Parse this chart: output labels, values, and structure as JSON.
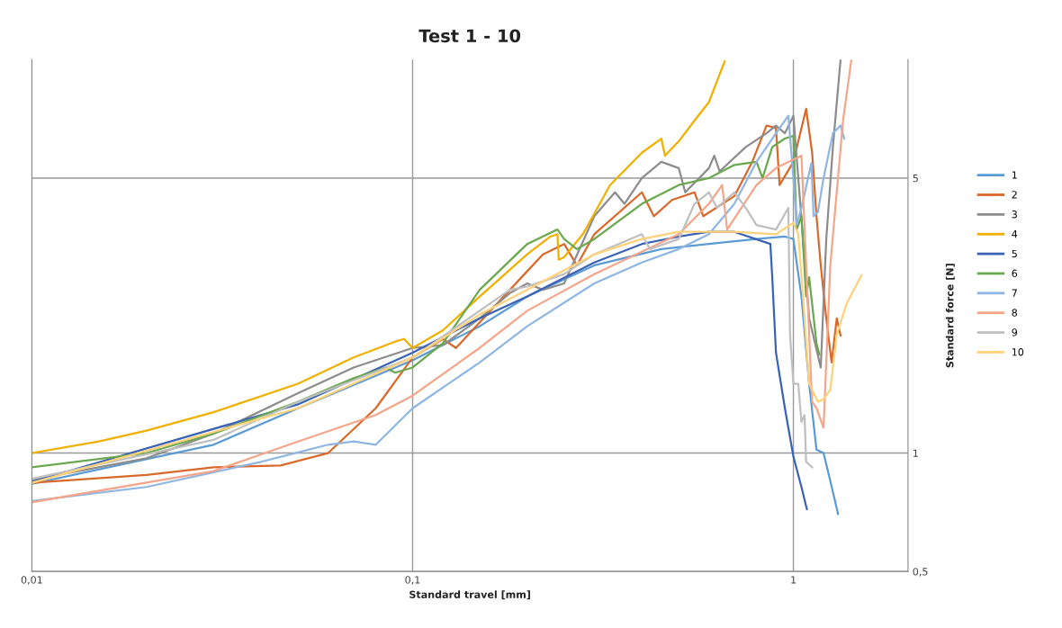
{
  "chart_data": {
    "type": "line",
    "title": "Test 1 - 10",
    "xlabel": "Standard travel [mm]",
    "ylabel": "Standard force [N]",
    "log": "xy",
    "xlim": [
      0.01,
      2
    ],
    "ylim": [
      0.5,
      10
    ],
    "xticks": [
      {
        "value": 0.01,
        "label": "0,01"
      },
      {
        "value": 0.1,
        "label": "0,1"
      },
      1
    ],
    "yticks": [
      {
        "value": 0.5,
        "label": "0,5"
      },
      1,
      5
    ],
    "grid": true,
    "legend": "right",
    "marker": "none",
    "line_style": "solid",
    "series": [
      {
        "name": "1",
        "color": "#5b9bd5",
        "x": [
          0.01,
          0.03,
          0.05,
          0.1,
          0.15,
          0.2,
          0.3,
          0.45,
          0.6,
          0.8,
          0.95,
          1.0,
          1.05,
          1.1,
          1.15,
          1.2,
          1.25,
          1.31
        ],
        "values": [
          0.835,
          1.05,
          1.3,
          1.72,
          2.1,
          2.5,
          3.0,
          3.3,
          3.4,
          3.5,
          3.55,
          3.5,
          2.5,
          1.5,
          1.02,
          1.0,
          0.85,
          0.7
        ]
      },
      {
        "name": "2",
        "color": "#d9692a",
        "x": [
          0.01,
          0.02,
          0.03,
          0.045,
          0.06,
          0.08,
          0.1,
          0.12,
          0.13,
          0.16,
          0.2,
          0.22,
          0.25,
          0.27,
          0.3,
          0.4,
          0.43,
          0.48,
          0.55,
          0.58,
          0.7,
          0.78,
          0.85,
          0.9,
          0.92,
          1.0,
          1.08,
          1.12,
          1.15,
          1.18,
          1.22,
          1.26,
          1.3,
          1.33
        ],
        "values": [
          0.84,
          0.88,
          0.92,
          0.93,
          1.0,
          1.3,
          1.75,
          1.95,
          1.85,
          2.3,
          2.9,
          3.2,
          3.4,
          3.0,
          3.6,
          4.6,
          4.0,
          4.4,
          4.6,
          4.0,
          4.5,
          5.5,
          6.8,
          6.7,
          4.8,
          5.5,
          7.5,
          5.8,
          4.0,
          3.0,
          2.2,
          1.7,
          2.2,
          1.99
        ]
      },
      {
        "name": "3",
        "color": "#8c8c8c",
        "x": [
          0.01,
          0.02,
          0.03,
          0.05,
          0.07,
          0.1,
          0.12,
          0.15,
          0.18,
          0.2,
          0.22,
          0.25,
          0.3,
          0.34,
          0.36,
          0.4,
          0.45,
          0.5,
          0.52,
          0.6,
          0.62,
          0.64,
          0.75,
          0.85,
          0.9,
          0.95,
          1.0,
          1.03,
          1.06,
          1.1,
          1.18,
          1.22,
          1.27,
          1.33
        ],
        "values": [
          0.855,
          0.97,
          1.12,
          1.42,
          1.65,
          1.85,
          1.88,
          2.2,
          2.55,
          2.7,
          2.6,
          2.7,
          4.0,
          4.6,
          4.3,
          5.0,
          5.5,
          5.3,
          4.6,
          5.3,
          5.7,
          5.2,
          6.0,
          6.5,
          6.8,
          6.5,
          7.2,
          5.0,
          3.5,
          2.2,
          1.65,
          3.5,
          6.0,
          10.0
        ]
      },
      {
        "name": "4",
        "color": "#f0b000",
        "x": [
          0.01,
          0.015,
          0.02,
          0.03,
          0.05,
          0.07,
          0.09,
          0.095,
          0.1,
          0.12,
          0.15,
          0.2,
          0.23,
          0.24,
          0.242,
          0.25,
          0.28,
          0.33,
          0.4,
          0.45,
          0.46,
          0.5,
          0.55,
          0.6,
          0.66
        ],
        "values": [
          1.0,
          1.07,
          1.14,
          1.27,
          1.5,
          1.75,
          1.92,
          1.95,
          1.85,
          2.05,
          2.5,
          3.2,
          3.55,
          3.6,
          3.1,
          3.15,
          3.6,
          4.8,
          5.8,
          6.3,
          5.7,
          6.2,
          7.0,
          7.8,
          9.9
        ]
      },
      {
        "name": "5",
        "color": "#3a62b5",
        "x": [
          0.01,
          0.05,
          0.1,
          0.15,
          0.2,
          0.3,
          0.4,
          0.5,
          0.6,
          0.7,
          0.87,
          0.88,
          0.9,
          0.95,
          1.0,
          1.05,
          1.085
        ],
        "values": [
          0.845,
          1.33,
          1.8,
          2.2,
          2.5,
          3.05,
          3.4,
          3.55,
          3.65,
          3.65,
          3.4,
          2.8,
          1.8,
          1.3,
          0.98,
          0.82,
          0.72
        ]
      },
      {
        "name": "6",
        "color": "#6aa84f",
        "x": [
          0.01,
          0.02,
          0.03,
          0.05,
          0.07,
          0.085,
          0.09,
          0.1,
          0.12,
          0.15,
          0.2,
          0.24,
          0.25,
          0.27,
          0.3,
          0.4,
          0.5,
          0.6,
          0.7,
          0.8,
          0.83,
          0.88,
          0.95,
          1.0,
          1.02,
          1.05,
          1.08,
          1.1,
          1.15,
          1.17
        ],
        "values": [
          0.92,
          1.0,
          1.12,
          1.35,
          1.55,
          1.65,
          1.6,
          1.65,
          1.9,
          2.6,
          3.4,
          3.7,
          3.5,
          3.3,
          3.5,
          4.3,
          4.8,
          5.0,
          5.4,
          5.5,
          5.0,
          6.0,
          6.3,
          6.4,
          3.7,
          4.0,
          2.5,
          2.8,
          1.9,
          1.78
        ]
      },
      {
        "name": "7",
        "color": "#8fb6e3",
        "x": [
          0.01,
          0.02,
          0.04,
          0.06,
          0.07,
          0.08,
          0.1,
          0.15,
          0.2,
          0.3,
          0.4,
          0.5,
          0.6,
          0.7,
          0.8,
          0.9,
          0.97,
          1.0,
          1.02,
          1.05,
          1.115,
          1.13,
          1.16,
          1.2,
          1.27,
          1.33,
          1.36
        ],
        "values": [
          0.755,
          0.82,
          0.95,
          1.05,
          1.07,
          1.05,
          1.3,
          1.7,
          2.1,
          2.7,
          3.05,
          3.3,
          3.6,
          4.3,
          5.5,
          6.5,
          7.2,
          5.0,
          3.8,
          4.2,
          5.46,
          4.0,
          4.1,
          5.0,
          6.5,
          6.8,
          6.3
        ]
      },
      {
        "name": "8",
        "color": "#f4a58a",
        "x": [
          0.01,
          0.03,
          0.05,
          0.08,
          0.1,
          0.15,
          0.2,
          0.3,
          0.4,
          0.5,
          0.6,
          0.65,
          0.67,
          0.8,
          0.9,
          1.05,
          1.1,
          1.12,
          1.15,
          1.2,
          1.25,
          1.35,
          1.42
        ],
        "values": [
          0.75,
          0.9,
          1.07,
          1.25,
          1.4,
          1.85,
          2.3,
          2.85,
          3.25,
          3.6,
          4.3,
          4.8,
          3.7,
          4.8,
          5.3,
          5.7,
          2.0,
          1.35,
          1.3,
          1.16,
          3.0,
          7.0,
          10.0
        ]
      },
      {
        "name": "9",
        "color": "#bfbfbf",
        "x": [
          0.01,
          0.03,
          0.05,
          0.1,
          0.15,
          0.18,
          0.2,
          0.25,
          0.3,
          0.4,
          0.42,
          0.5,
          0.55,
          0.6,
          0.63,
          0.7,
          0.75,
          0.8,
          0.9,
          0.97,
          0.98,
          1.0,
          1.03,
          1.05,
          1.07,
          1.08,
          1.12
        ],
        "values": [
          0.86,
          1.08,
          1.35,
          1.75,
          2.3,
          2.6,
          2.65,
          2.85,
          3.2,
          3.6,
          3.3,
          3.5,
          4.3,
          4.6,
          4.2,
          4.6,
          4.2,
          3.8,
          3.7,
          4.2,
          2.0,
          1.5,
          1.5,
          1.2,
          1.25,
          0.95,
          0.92
        ]
      },
      {
        "name": "10",
        "color": "#ffd27a",
        "x": [
          0.01,
          0.05,
          0.1,
          0.15,
          0.2,
          0.3,
          0.4,
          0.5,
          0.7,
          0.9,
          1.0,
          1.03,
          1.06,
          1.1,
          1.16,
          1.2,
          1.25,
          1.3,
          1.38,
          1.51
        ],
        "values": [
          0.84,
          1.3,
          1.75,
          2.25,
          2.6,
          3.2,
          3.5,
          3.65,
          3.65,
          3.6,
          3.85,
          3.6,
          2.5,
          1.5,
          1.35,
          1.37,
          1.45,
          2.0,
          2.4,
          2.83
        ]
      }
    ]
  }
}
